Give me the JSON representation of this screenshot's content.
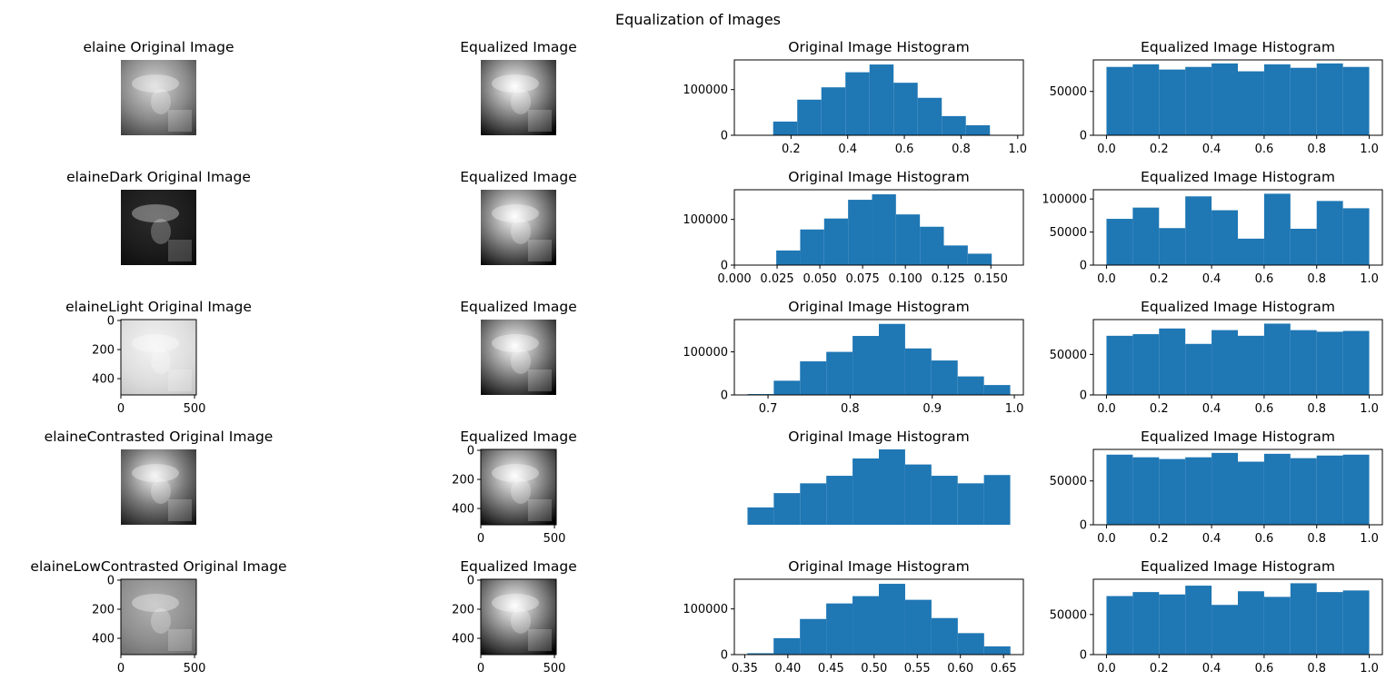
{
  "figure": {
    "title": "Equalization of Images"
  },
  "colors": {
    "bar": "#1f77b4",
    "axis": "#000000"
  },
  "rows": [
    {
      "image": {
        "title": "elaine Original Image",
        "tone": "normal",
        "show_axes": false,
        "x_ticks": [],
        "y_ticks": []
      },
      "equalized": {
        "title": "Equalized Image",
        "show_axes": false,
        "x_ticks": [],
        "y_ticks": []
      }
    },
    {
      "image": {
        "title": "elaineDark Original Image",
        "tone": "dark",
        "show_axes": false,
        "x_ticks": [],
        "y_ticks": []
      },
      "equalized": {
        "title": "Equalized Image",
        "show_axes": false,
        "x_ticks": [],
        "y_ticks": []
      }
    },
    {
      "image": {
        "title": "elaineLight Original Image",
        "tone": "light",
        "show_axes": true,
        "x_ticks": [
          "0",
          "500"
        ],
        "y_ticks": [
          "0",
          "200",
          "400"
        ]
      },
      "equalized": {
        "title": "Equalized Image",
        "show_axes": false,
        "x_ticks": [],
        "y_ticks": []
      }
    },
    {
      "image": {
        "title": "elaineContrasted Original Image",
        "tone": "contrast",
        "show_axes": false,
        "x_ticks": [],
        "y_ticks": []
      },
      "equalized": {
        "title": "Equalized Image",
        "show_axes": true,
        "x_ticks": [
          "0",
          "500"
        ],
        "y_ticks": [
          "0",
          "200",
          "400"
        ]
      }
    },
    {
      "image": {
        "title": "elaineLowContrasted Original Image",
        "tone": "low",
        "show_axes": true,
        "x_ticks": [
          "0",
          "500"
        ],
        "y_ticks": [
          "0",
          "200",
          "400"
        ]
      },
      "equalized": {
        "title": "Equalized Image",
        "show_axes": true,
        "x_ticks": [
          "0",
          "500"
        ],
        "y_ticks": [
          "0",
          "200",
          "400"
        ]
      }
    }
  ],
  "chart_data": [
    {
      "type": "bar",
      "title": "Original Image Histogram",
      "show_axes": true,
      "bin_edges": [
        0.137,
        0.222,
        0.307,
        0.392,
        0.477,
        0.562,
        0.647,
        0.732,
        0.817,
        0.902,
        0.987
      ],
      "values": [
        30000,
        78000,
        105000,
        138000,
        155000,
        115000,
        82000,
        42000,
        22000,
        0
      ],
      "xlim": [
        0.0,
        1.02
      ],
      "ylim": [
        0,
        165000
      ],
      "xticks": [
        0.2,
        0.4,
        0.6,
        0.8,
        1.0
      ],
      "xtick_labels": [
        "0.2",
        "0.4",
        "0.6",
        "0.8",
        "1.0"
      ],
      "yticks": [
        0,
        100000
      ],
      "ytick_labels": [
        "0",
        "100000"
      ]
    },
    {
      "type": "bar",
      "title": "Equalized Image Histogram",
      "show_axes": true,
      "bin_edges": [
        0.0,
        0.1,
        0.2,
        0.3,
        0.4,
        0.5,
        0.6,
        0.7,
        0.8,
        0.9,
        1.0
      ],
      "values": [
        78000,
        81000,
        75000,
        78000,
        82000,
        73000,
        81000,
        77000,
        82000,
        78000
      ],
      "xlim": [
        -0.05,
        1.05
      ],
      "ylim": [
        0,
        86000
      ],
      "xticks": [
        0.0,
        0.2,
        0.4,
        0.6,
        0.8,
        1.0
      ],
      "xtick_labels": [
        "0.0",
        "0.2",
        "0.4",
        "0.6",
        "0.8",
        "1.0"
      ],
      "yticks": [
        0,
        50000
      ],
      "ytick_labels": [
        "0",
        "50000"
      ]
    },
    {
      "type": "bar",
      "title": "Original Image Histogram",
      "show_axes": true,
      "bin_edges": [
        0.0245,
        0.0385,
        0.0525,
        0.0665,
        0.0805,
        0.0945,
        0.1085,
        0.1225,
        0.1365,
        0.1505,
        0.1645
      ],
      "values": [
        32000,
        78000,
        102000,
        143000,
        155000,
        111000,
        84000,
        43000,
        25000,
        0
      ],
      "xlim": [
        0.0,
        0.169
      ],
      "ylim": [
        0,
        165000
      ],
      "xticks": [
        0.0,
        0.025,
        0.05,
        0.075,
        0.1,
        0.125,
        0.15
      ],
      "xtick_labels": [
        "0.000",
        "0.025",
        "0.050",
        "0.075",
        "0.100",
        "0.125",
        "0.150"
      ],
      "yticks": [
        0,
        100000
      ],
      "ytick_labels": [
        "0",
        "100000"
      ]
    },
    {
      "type": "bar",
      "title": "Equalized Image Histogram",
      "show_axes": true,
      "bin_edges": [
        0.0,
        0.1,
        0.2,
        0.3,
        0.4,
        0.5,
        0.6,
        0.7,
        0.8,
        0.9,
        1.0
      ],
      "values": [
        70000,
        87000,
        56000,
        104000,
        83000,
        40000,
        108000,
        55000,
        97000,
        86000
      ],
      "xlim": [
        -0.05,
        1.05
      ],
      "ylim": [
        0,
        114000
      ],
      "xticks": [
        0.0,
        0.2,
        0.4,
        0.6,
        0.8,
        1.0
      ],
      "xtick_labels": [
        "0.0",
        "0.2",
        "0.4",
        "0.6",
        "0.8",
        "1.0"
      ],
      "yticks": [
        0,
        50000,
        100000
      ],
      "ytick_labels": [
        "0",
        "50000",
        "100000"
      ]
    },
    {
      "type": "bar",
      "title": "Original Image Histogram",
      "show_axes": true,
      "bin_edges": [
        0.675,
        0.707,
        0.739,
        0.771,
        0.803,
        0.835,
        0.867,
        0.899,
        0.931,
        0.963,
        0.995
      ],
      "values": [
        2000,
        33000,
        78000,
        100000,
        137000,
        165000,
        108000,
        80000,
        43000,
        23000
      ],
      "xlim": [
        0.659,
        1.011
      ],
      "ylim": [
        0,
        175000
      ],
      "xticks": [
        0.7,
        0.8,
        0.9,
        1.0
      ],
      "xtick_labels": [
        "0.7",
        "0.8",
        "0.9",
        "1.0"
      ],
      "yticks": [
        0,
        100000
      ],
      "ytick_labels": [
        "0",
        "100000"
      ]
    },
    {
      "type": "bar",
      "title": "Equalized Image Histogram",
      "show_axes": true,
      "bin_edges": [
        0.0,
        0.1,
        0.2,
        0.3,
        0.4,
        0.5,
        0.6,
        0.7,
        0.8,
        0.9,
        1.0
      ],
      "values": [
        73000,
        75000,
        82000,
        63000,
        80000,
        73000,
        88000,
        80000,
        78000,
        79000
      ],
      "xlim": [
        -0.05,
        1.05
      ],
      "ylim": [
        0,
        93000
      ],
      "xticks": [
        0.0,
        0.2,
        0.4,
        0.6,
        0.8,
        1.0
      ],
      "xtick_labels": [
        "0.0",
        "0.2",
        "0.4",
        "0.6",
        "0.8",
        "1.0"
      ],
      "yticks": [
        0,
        50000
      ],
      "ytick_labels": [
        "0",
        "50000"
      ]
    },
    {
      "type": "bar",
      "title": "Original Image Histogram",
      "show_axes": false,
      "bin_edges": [
        0,
        1,
        2,
        3,
        4,
        5,
        6,
        7,
        8,
        9,
        10
      ],
      "values": [
        23,
        42,
        55,
        65,
        88,
        100,
        80,
        65,
        55,
        66
      ],
      "xlim": [
        -0.5,
        10.5
      ],
      "ylim": [
        0,
        100
      ],
      "xticks": [],
      "xtick_labels": [],
      "yticks": [],
      "ytick_labels": []
    },
    {
      "type": "bar",
      "title": "Equalized Image Histogram",
      "show_axes": true,
      "bin_edges": [
        0.0,
        0.1,
        0.2,
        0.3,
        0.4,
        0.5,
        0.6,
        0.7,
        0.8,
        0.9,
        1.0
      ],
      "values": [
        80000,
        77000,
        75000,
        77000,
        82000,
        72000,
        81000,
        76000,
        79000,
        80000
      ],
      "xlim": [
        -0.05,
        1.05
      ],
      "ylim": [
        0,
        86000
      ],
      "xticks": [
        0.0,
        0.2,
        0.4,
        0.6,
        0.8,
        1.0
      ],
      "xtick_labels": [
        "0.0",
        "0.2",
        "0.4",
        "0.6",
        "0.8",
        "1.0"
      ],
      "yticks": [
        0,
        50000
      ],
      "ytick_labels": [
        "0",
        "50000"
      ]
    },
    {
      "type": "bar",
      "title": "Original Image Histogram",
      "show_axes": true,
      "bin_edges": [
        0.353,
        0.3835,
        0.414,
        0.4445,
        0.475,
        0.5055,
        0.536,
        0.5665,
        0.597,
        0.6275,
        0.658
      ],
      "values": [
        3000,
        36000,
        78000,
        112000,
        128000,
        155000,
        120000,
        80000,
        47000,
        18000
      ],
      "xlim": [
        0.338,
        0.673
      ],
      "ylim": [
        0,
        165000
      ],
      "xticks": [
        0.35,
        0.4,
        0.45,
        0.5,
        0.55,
        0.6,
        0.65
      ],
      "xtick_labels": [
        "0.35",
        "0.40",
        "0.45",
        "0.50",
        "0.55",
        "0.60",
        "0.65"
      ],
      "yticks": [
        0,
        100000
      ],
      "ytick_labels": [
        "0",
        "100000"
      ]
    },
    {
      "type": "bar",
      "title": "Equalized Image Histogram",
      "show_axes": true,
      "bin_edges": [
        0.0,
        0.1,
        0.2,
        0.3,
        0.4,
        0.5,
        0.6,
        0.7,
        0.8,
        0.9,
        1.0
      ],
      "values": [
        73000,
        78000,
        75000,
        86000,
        62000,
        79000,
        72000,
        89000,
        78000,
        80000
      ],
      "xlim": [
        -0.05,
        1.05
      ],
      "ylim": [
        0,
        94000
      ],
      "xticks": [
        0.0,
        0.2,
        0.4,
        0.6,
        0.8,
        1.0
      ],
      "xtick_labels": [
        "0.0",
        "0.2",
        "0.4",
        "0.6",
        "0.8",
        "1.0"
      ],
      "yticks": [
        0,
        50000
      ],
      "ytick_labels": [
        "0",
        "50000"
      ]
    }
  ]
}
